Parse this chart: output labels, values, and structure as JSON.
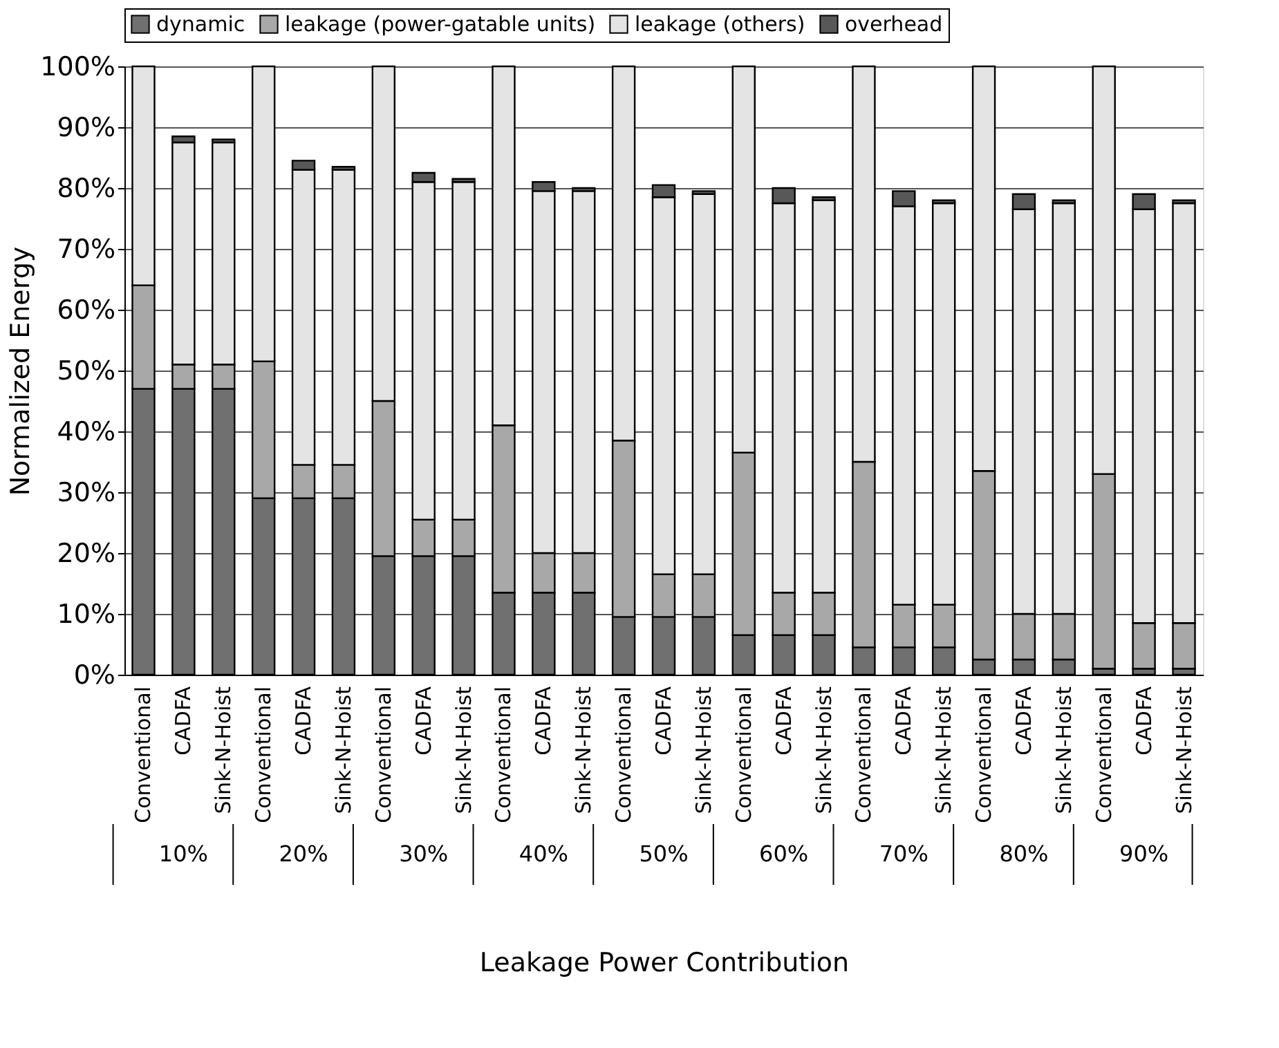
{
  "chart_data": {
    "type": "bar",
    "stacked": true,
    "xlabel": "Leakage Power Contribution",
    "ylabel": "Normalized Energy",
    "categories": [
      "Conventional",
      "CADFA",
      "Sink-N-Hoist",
      "Conventional",
      "CADFA",
      "Sink-N-Hoist",
      "Conventional",
      "CADFA",
      "Sink-N-Hoist",
      "Conventional",
      "CADFA",
      "Sink-N-Hoist",
      "Conventional",
      "CADFA",
      "Sink-N-Hoist",
      "Conventional",
      "CADFA",
      "Sink-N-Hoist",
      "Conventional",
      "CADFA",
      "Sink-N-Hoist",
      "Conventional",
      "CADFA",
      "Sink-N-Hoist",
      "Conventional",
      "CADFA",
      "Sink-N-Hoist"
    ],
    "series": [
      {
        "name": "dynamic",
        "color": "#707070",
        "values": [
          47,
          47,
          47,
          29,
          29,
          29,
          19.5,
          19.5,
          19.5,
          13.5,
          13.5,
          13.5,
          9.5,
          9.5,
          9.5,
          6.5,
          6.5,
          6.5,
          4.5,
          4.5,
          4.5,
          2.5,
          2.5,
          2.5,
          1,
          1,
          1
        ]
      },
      {
        "name": "leakage (power-gatable units)",
        "color": "#a8a8a8",
        "values": [
          17,
          4,
          4,
          22.5,
          5.5,
          5.5,
          25.5,
          6,
          6,
          27.5,
          6.5,
          6.5,
          29,
          7,
          7,
          30,
          7,
          7,
          30.5,
          7,
          7,
          31,
          7.5,
          7.5,
          32,
          7.5,
          7.5
        ]
      },
      {
        "name": "leakage (others)",
        "color": "#e4e4e4",
        "values": [
          36,
          36.5,
          36.5,
          48.5,
          48.5,
          48.5,
          55,
          55.5,
          55.5,
          59,
          59.5,
          59.5,
          61.5,
          62,
          62.5,
          63.5,
          64,
          64.5,
          65,
          65.5,
          66,
          66.5,
          66.5,
          67.5,
          67,
          68,
          69
        ]
      },
      {
        "name": "overhead",
        "color": "#585858",
        "values": [
          0,
          1,
          0.5,
          0,
          1.5,
          0.5,
          0,
          1.5,
          0.5,
          0,
          1.5,
          0.5,
          0,
          2,
          0.5,
          0,
          2.5,
          0.5,
          0,
          2.5,
          0.5,
          0,
          2.5,
          0.5,
          0,
          2.5,
          0.5
        ]
      }
    ],
    "annotations": [
      "10%",
      "20%",
      "30%",
      "40%",
      "50%",
      "60%",
      "70%",
      "80%",
      "90%"
    ],
    "ylim": [
      0,
      100
    ],
    "yticks": [
      {
        "value": 0,
        "label": "0%"
      },
      {
        "value": 10,
        "label": "10%"
      },
      {
        "value": 20,
        "label": "20%"
      },
      {
        "value": 30,
        "label": "30%"
      },
      {
        "value": 40,
        "label": "40%"
      },
      {
        "value": 50,
        "label": "50%"
      },
      {
        "value": 60,
        "label": "60%"
      },
      {
        "value": 70,
        "label": "70%"
      },
      {
        "value": 80,
        "label": "80%"
      },
      {
        "value": 90,
        "label": "90%"
      },
      {
        "value": 100,
        "label": "100%"
      }
    ],
    "grid": "y",
    "legend": "top"
  }
}
